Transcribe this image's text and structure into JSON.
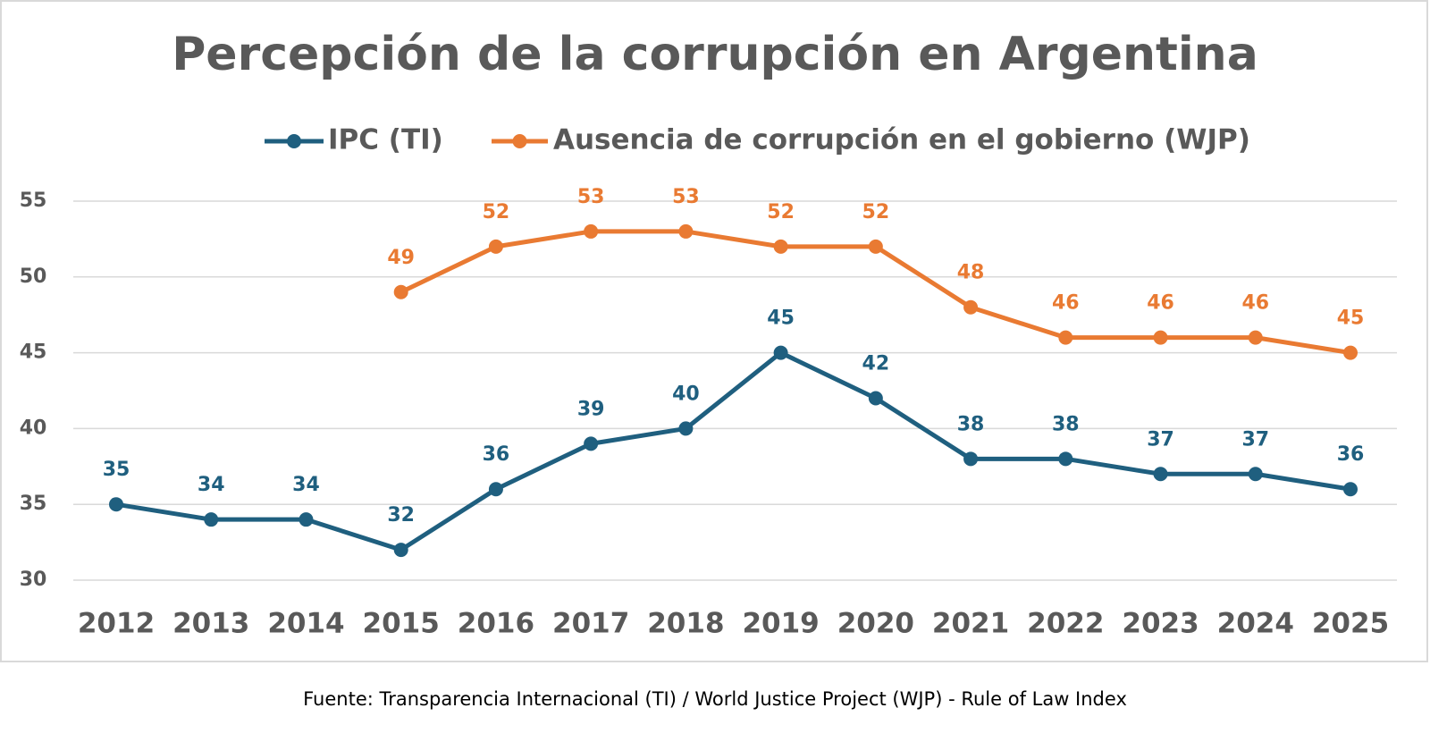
{
  "chart_data": {
    "type": "line",
    "title": "Percepción de la corrupción en Argentina",
    "categories": [
      "2012",
      "2013",
      "2014",
      "2015",
      "2016",
      "2017",
      "2018",
      "2019",
      "2020",
      "2021",
      "2022",
      "2023",
      "2024",
      "2025"
    ],
    "series": [
      {
        "name": "IPC (TI)",
        "color": "#1f5f7f",
        "values": [
          35,
          34,
          34,
          32,
          36,
          39,
          40,
          45,
          42,
          38,
          38,
          37,
          37,
          36
        ]
      },
      {
        "name": "Ausencia de corrupción en el gobierno (WJP)",
        "color": "#e97a32",
        "values": [
          null,
          null,
          null,
          49,
          52,
          53,
          53,
          52,
          52,
          48,
          46,
          46,
          46,
          45
        ]
      }
    ],
    "ylim": [
      30,
      55
    ],
    "yticks": [
      30,
      35,
      40,
      45,
      50,
      55
    ],
    "grid": true,
    "legend": "top",
    "source": "Fuente: Transparencia Internacional (TI) / World Justice Project (WJP) - Rule of Law Index"
  }
}
